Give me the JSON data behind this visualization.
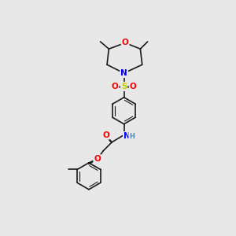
{
  "background_color": "#e8e8e8",
  "bond_color": "#1a1a1a",
  "atom_colors": {
    "O": "#ff0000",
    "N": "#0000ff",
    "S": "#cccc00",
    "H": "#5588aa",
    "C": "#1a1a1a"
  },
  "font_size_atom": 7.5,
  "font_size_small": 6.0,
  "lw": 1.2,
  "lw_double": 0.8
}
